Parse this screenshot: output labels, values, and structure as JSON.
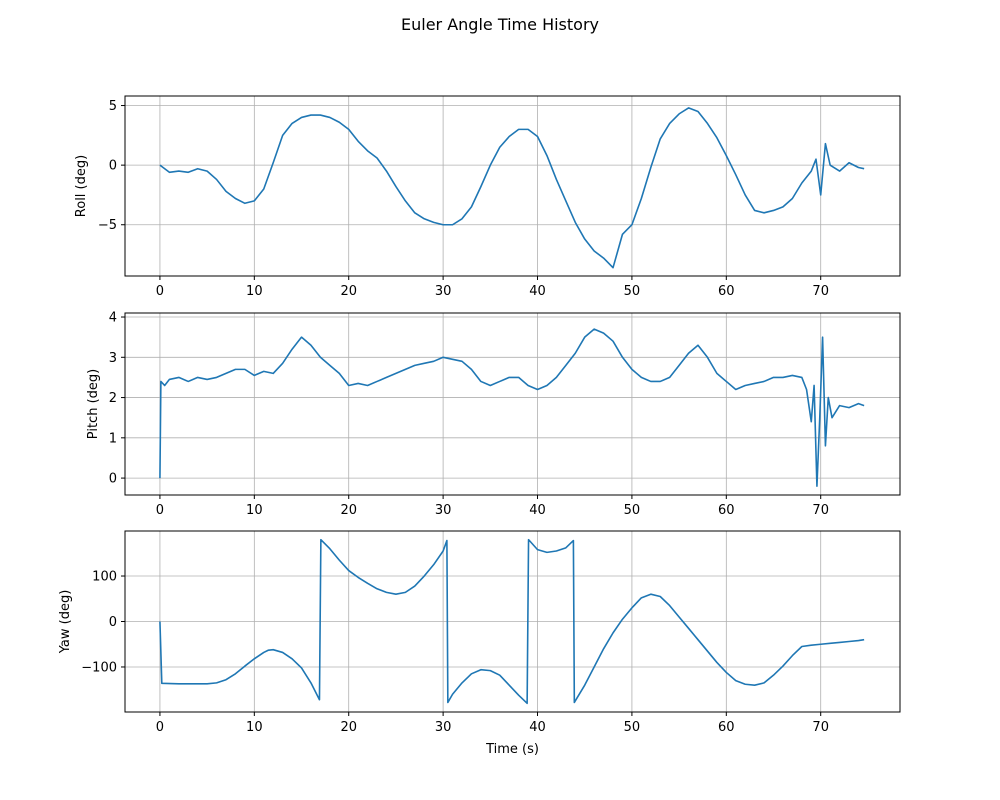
{
  "figure": {
    "title": "Euler Angle Time History"
  },
  "colors": {
    "line": "#1f77b4",
    "grid": "#b0b0b0",
    "frame": "#000000",
    "background": "#ffffff"
  },
  "chart_data": [
    {
      "type": "line",
      "ylabel": "Roll (deg)",
      "xlabel": "",
      "xlim": [
        -3.7,
        78.4
      ],
      "ylim": [
        -9.3,
        5.8
      ],
      "xticks": [
        0,
        10,
        20,
        30,
        40,
        50,
        60,
        70
      ],
      "yticks": [
        -5,
        0,
        5
      ],
      "ytick_labels": [
        "−5",
        "0",
        "5"
      ],
      "grid": true,
      "series": [
        {
          "x": [
            0,
            1,
            2,
            3,
            4,
            5,
            6,
            7,
            8,
            9,
            10,
            11,
            12,
            13,
            14,
            15,
            16,
            17,
            18,
            19,
            20,
            21,
            22,
            23,
            24,
            25,
            26,
            27,
            28,
            29,
            30,
            31,
            32,
            33,
            34,
            35,
            36,
            37,
            38,
            39,
            40,
            41,
            42,
            43,
            44,
            45,
            46,
            47,
            48,
            49,
            50,
            51,
            52,
            53,
            54,
            55,
            56,
            57,
            58,
            59,
            60,
            61,
            62,
            63,
            64,
            65,
            66,
            67,
            68,
            69,
            69.5,
            70,
            70.5,
            71,
            72,
            73,
            74,
            74.6
          ],
          "y": [
            0,
            -0.6,
            -0.5,
            -0.6,
            -0.3,
            -0.5,
            -1.2,
            -2.2,
            -2.8,
            -3.2,
            -3.0,
            -2.0,
            0.2,
            2.5,
            3.5,
            4.0,
            4.2,
            4.2,
            4.0,
            3.6,
            3.0,
            2.0,
            1.2,
            0.6,
            -0.5,
            -1.8,
            -3.0,
            -4.0,
            -4.5,
            -4.8,
            -5.0,
            -5.0,
            -4.5,
            -3.5,
            -1.8,
            0.0,
            1.5,
            2.4,
            3.0,
            3.0,
            2.4,
            0.8,
            -1.2,
            -3.0,
            -4.8,
            -6.2,
            -7.2,
            -7.8,
            -8.6,
            -5.8,
            -5.0,
            -2.8,
            -0.2,
            2.2,
            3.5,
            4.3,
            4.8,
            4.5,
            3.5,
            2.3,
            0.8,
            -0.8,
            -2.5,
            -3.8,
            -4.0,
            -3.8,
            -3.5,
            -2.8,
            -1.5,
            -0.5,
            0.5,
            -2.5,
            1.8,
            0.0,
            -0.5,
            0.2,
            -0.2,
            -0.3
          ]
        }
      ]
    },
    {
      "type": "line",
      "ylabel": "Pitch (deg)",
      "xlabel": "",
      "xlim": [
        -3.7,
        78.4
      ],
      "ylim": [
        -0.42,
        4.1
      ],
      "xticks": [
        0,
        10,
        20,
        30,
        40,
        50,
        60,
        70
      ],
      "yticks": [
        0,
        1,
        2,
        3,
        4
      ],
      "ytick_labels": [
        "0",
        "1",
        "2",
        "3",
        "4"
      ],
      "grid": true,
      "series": [
        {
          "x": [
            0,
            0.1,
            0.5,
            1,
            2,
            3,
            4,
            5,
            6,
            7,
            8,
            9,
            10,
            11,
            12,
            13,
            14,
            15,
            16,
            17,
            18,
            19,
            20,
            21,
            22,
            23,
            24,
            25,
            26,
            27,
            28,
            29,
            30,
            31,
            32,
            33,
            34,
            35,
            36,
            37,
            38,
            39,
            40,
            41,
            42,
            43,
            44,
            45,
            46,
            47,
            48,
            49,
            50,
            51,
            52,
            53,
            54,
            55,
            56,
            57,
            58,
            59,
            60,
            61,
            62,
            63,
            64,
            65,
            66,
            67,
            68,
            68.5,
            69,
            69.3,
            69.6,
            69.9,
            70.2,
            70.5,
            70.8,
            71.2,
            72,
            73,
            74,
            74.6
          ],
          "y": [
            0,
            2.4,
            2.3,
            2.45,
            2.5,
            2.4,
            2.5,
            2.45,
            2.5,
            2.6,
            2.7,
            2.7,
            2.55,
            2.65,
            2.6,
            2.85,
            3.2,
            3.5,
            3.3,
            3.0,
            2.8,
            2.6,
            2.3,
            2.35,
            2.3,
            2.4,
            2.5,
            2.6,
            2.7,
            2.8,
            2.85,
            2.9,
            3.0,
            2.95,
            2.9,
            2.7,
            2.4,
            2.3,
            2.4,
            2.5,
            2.5,
            2.3,
            2.2,
            2.3,
            2.5,
            2.8,
            3.1,
            3.5,
            3.7,
            3.6,
            3.4,
            3.0,
            2.7,
            2.5,
            2.4,
            2.4,
            2.5,
            2.8,
            3.1,
            3.3,
            3.0,
            2.6,
            2.4,
            2.2,
            2.3,
            2.35,
            2.4,
            2.5,
            2.5,
            2.55,
            2.5,
            2.2,
            1.4,
            2.3,
            -0.2,
            1.5,
            3.5,
            0.8,
            2.0,
            1.5,
            1.8,
            1.75,
            1.85,
            1.8
          ]
        }
      ]
    },
    {
      "type": "line",
      "ylabel": "Yaw (deg)",
      "xlabel": "Time (s)",
      "xlim": [
        -3.7,
        78.4
      ],
      "ylim": [
        -199,
        199
      ],
      "xticks": [
        0,
        10,
        20,
        30,
        40,
        50,
        60,
        70
      ],
      "yticks": [
        -100,
        0,
        100
      ],
      "ytick_labels": [
        "−100",
        "0",
        "100"
      ],
      "grid": true,
      "series": [
        {
          "x": [
            0,
            0.2,
            2,
            4,
            5,
            6,
            7,
            8,
            9,
            10,
            11,
            11.5,
            12,
            13,
            14,
            15,
            16,
            16.9,
            17.05,
            18,
            19,
            20,
            21,
            22,
            23,
            24,
            25,
            26,
            27,
            28,
            29,
            30,
            30.4,
            30.5,
            31,
            32,
            33,
            34,
            35,
            36,
            37,
            38,
            38.9,
            39.05,
            40,
            41,
            42,
            43,
            43.8,
            43.9,
            45,
            46,
            47,
            48,
            49,
            50,
            51,
            52,
            53,
            54,
            55,
            56,
            57,
            58,
            59,
            60,
            61,
            62,
            63,
            64,
            65,
            66,
            67,
            68,
            69,
            70,
            71,
            72,
            73,
            74,
            74.6
          ],
          "y": [
            0,
            -136,
            -137,
            -137,
            -137,
            -135,
            -128,
            -115,
            -98,
            -82,
            -68,
            -63,
            -62,
            -68,
            -82,
            -102,
            -135,
            -172,
            180,
            160,
            135,
            112,
            97,
            84,
            72,
            64,
            60,
            64,
            78,
            100,
            125,
            155,
            178,
            -178,
            -160,
            -135,
            -115,
            -106,
            -108,
            -118,
            -140,
            -162,
            -180,
            180,
            158,
            152,
            155,
            162,
            178,
            -178,
            -140,
            -100,
            -60,
            -25,
            5,
            30,
            52,
            60,
            55,
            35,
            10,
            -15,
            -40,
            -65,
            -90,
            -112,
            -130,
            -138,
            -140,
            -135,
            -118,
            -98,
            -75,
            -55,
            -52,
            -50,
            -48,
            -46,
            -44,
            -42,
            -40
          ]
        }
      ]
    }
  ]
}
